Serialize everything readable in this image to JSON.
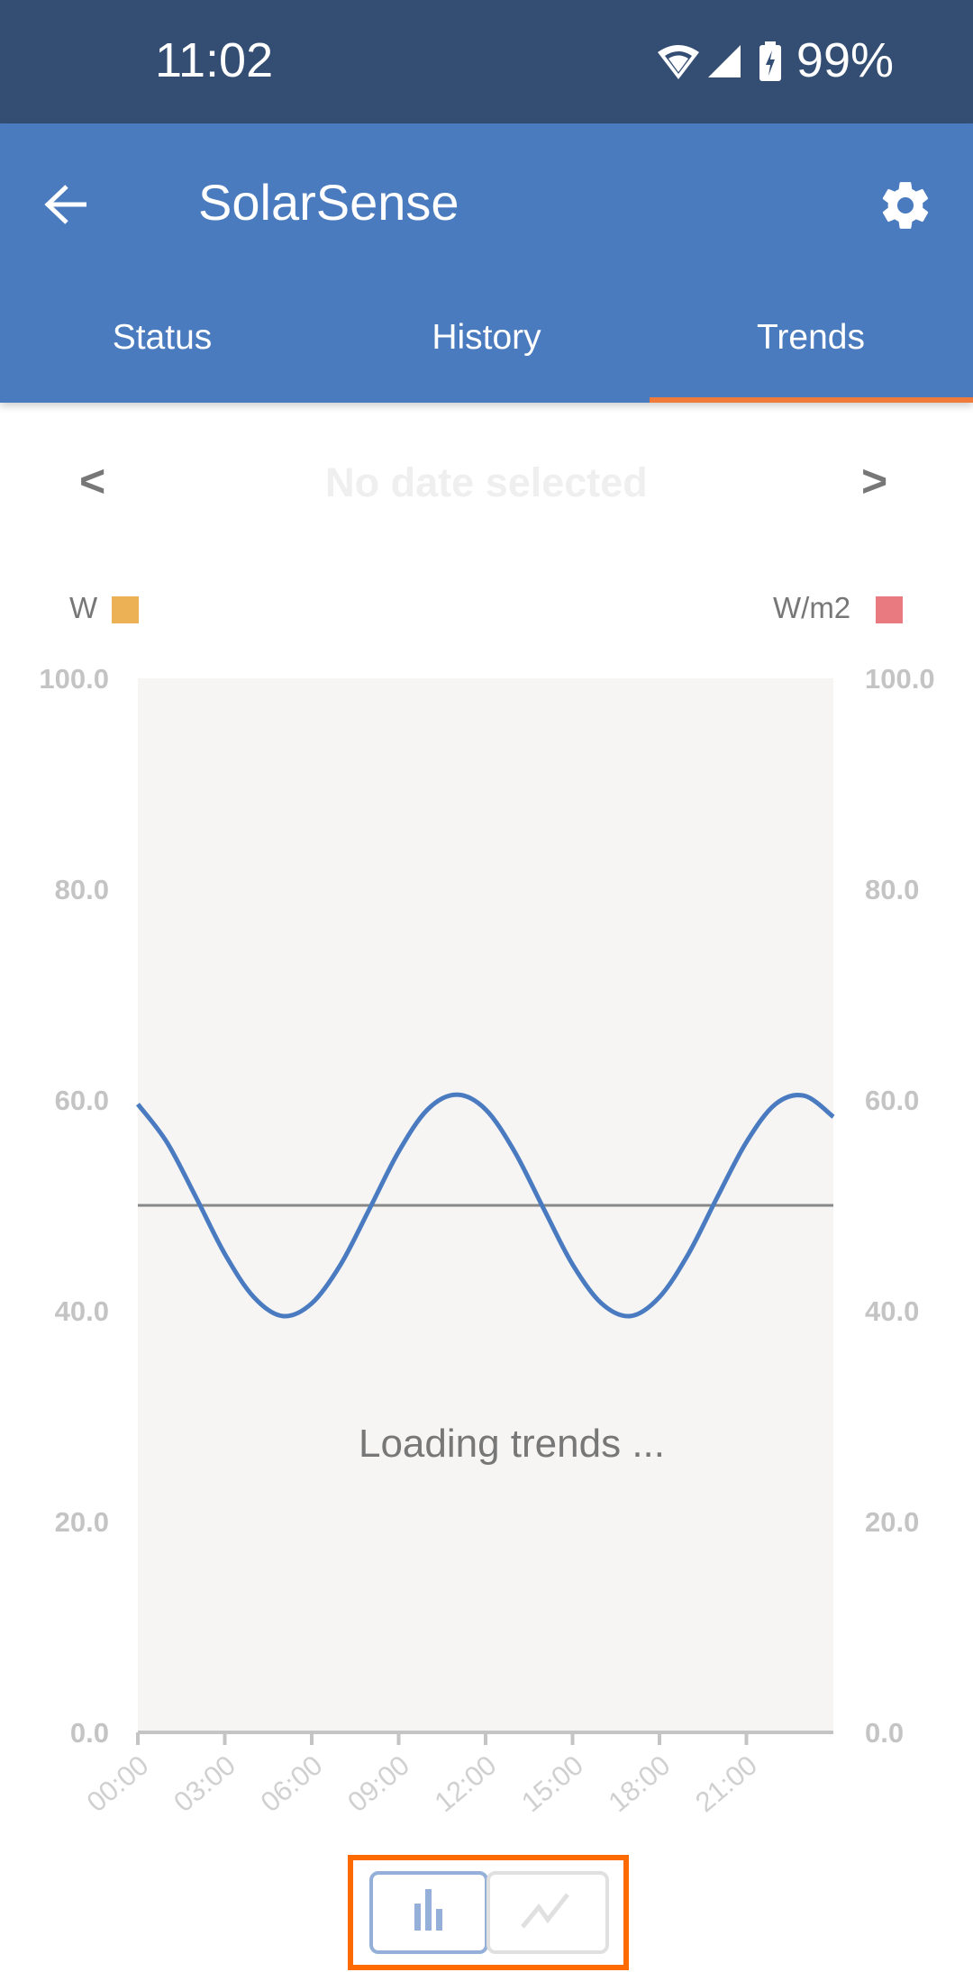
{
  "status_bar": {
    "time": "11:02",
    "battery": "99%",
    "icons": [
      "wifi-icon",
      "signal-icon",
      "battery-charging-icon"
    ]
  },
  "app_bar": {
    "title": "SolarSense",
    "back_icon": "arrow-left-icon",
    "settings_icon": "gear-icon"
  },
  "tabs": [
    {
      "label": "Status"
    },
    {
      "label": "History"
    },
    {
      "label": "Trends",
      "active": true
    }
  ],
  "date_nav": {
    "prev": "<",
    "next": ">",
    "label": "No date selected"
  },
  "legend": {
    "left": {
      "label": "W",
      "color": "#ecb055"
    },
    "right": {
      "label": "W/m2",
      "color": "#e87a80"
    }
  },
  "loading_text": "Loading trends ...",
  "toggle": {
    "options": [
      "bar-chart-icon",
      "line-chart-icon"
    ],
    "selected": "bar-chart-icon"
  },
  "colors": {
    "status_bar": "#344d73",
    "app_bar": "#4a7bbf",
    "tab_indicator": "#f07a3a",
    "line": "#4a7bc0",
    "baseline": "#888888",
    "plot_bg": "#f6f5f4",
    "highlight": "#ff6a00"
  },
  "chart_data": {
    "type": "line",
    "x_tick_labels": [
      "00:00",
      "03:00",
      "06:00",
      "09:00",
      "12:00",
      "15:00",
      "18:00",
      "21:00"
    ],
    "xlim": [
      0,
      24
    ],
    "y_left_ticks": [
      "0.0",
      "20.0",
      "40.0",
      "60.0",
      "80.0",
      "100.0"
    ],
    "y_right_ticks": [
      "0.0",
      "20.0",
      "40.0",
      "60.0",
      "80.0",
      "100.0"
    ],
    "ylim": [
      0,
      100
    ],
    "grid": false,
    "reference_line": 50,
    "series": [
      {
        "x": [
          0,
          1,
          2,
          3,
          4,
          5,
          6,
          7,
          8,
          9,
          10,
          11,
          12,
          13,
          14,
          15,
          16,
          17,
          18,
          19,
          20,
          21,
          22,
          23,
          24
        ],
        "values": [
          59.6,
          56.0,
          50.8,
          45.4,
          41.3,
          39.5,
          40.7,
          44.4,
          49.7,
          55.1,
          59.1,
          60.5,
          59.1,
          55.1,
          49.7,
          44.4,
          40.7,
          39.5,
          41.3,
          45.4,
          50.8,
          56.0,
          59.6,
          60.4,
          58.4
        ]
      }
    ]
  }
}
